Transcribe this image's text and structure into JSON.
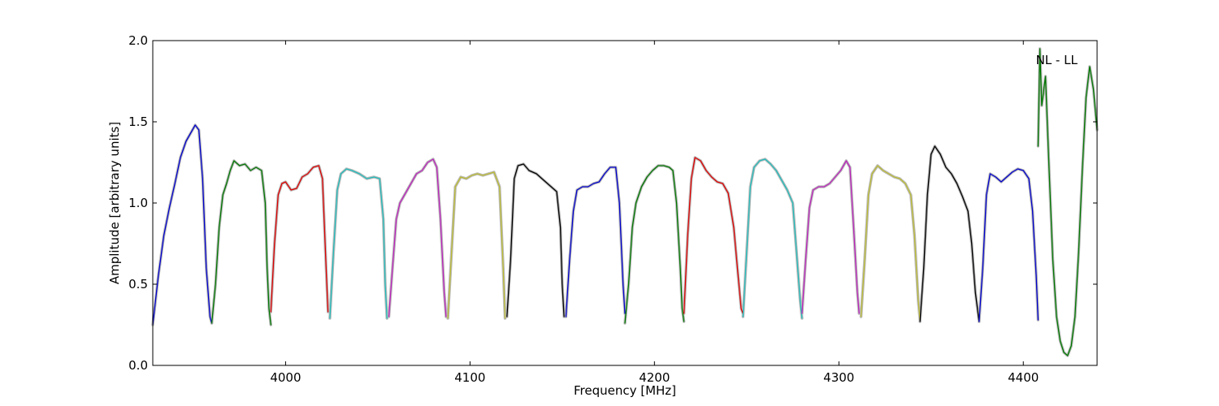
{
  "chart_data": {
    "type": "line",
    "title": "",
    "xlabel": "Frequency [MHz]",
    "ylabel": "Amplitude [arbitrary units]",
    "xlim": [
      3928,
      4440
    ],
    "ylim": [
      0.0,
      2.0
    ],
    "xticks": [
      {
        "value": 4000,
        "label": "4000"
      },
      {
        "value": 4100,
        "label": "4100"
      },
      {
        "value": 4200,
        "label": "4200"
      },
      {
        "value": 4300,
        "label": "4300"
      },
      {
        "value": 4400,
        "label": "4400"
      }
    ],
    "yticks": [
      {
        "value": 0.0,
        "label": "0.0"
      },
      {
        "value": 0.5,
        "label": "0.5"
      },
      {
        "value": 1.0,
        "label": "1.0"
      },
      {
        "value": 1.5,
        "label": "1.5"
      },
      {
        "value": 2.0,
        "label": "2.0"
      }
    ],
    "grid": false,
    "annotation": {
      "text": "NL - LL",
      "x": 4411,
      "y": 1.88
    },
    "background_series_color": "#bbbbbb",
    "series": [
      {
        "color": "#0000cc",
        "x": [
          3928,
          3931,
          3934,
          3937,
          3940,
          3943,
          3946,
          3949,
          3951,
          3953,
          3955,
          3957,
          3959,
          3960
        ],
        "y": [
          0.25,
          0.55,
          0.8,
          0.97,
          1.12,
          1.28,
          1.38,
          1.44,
          1.48,
          1.45,
          1.15,
          0.6,
          0.3,
          0.26
        ]
      },
      {
        "color": "#007700",
        "x": [
          3960,
          3962,
          3964,
          3966,
          3968,
          3970,
          3972,
          3975,
          3978,
          3981,
          3984,
          3987,
          3989,
          3990,
          3991,
          3992
        ],
        "y": [
          0.26,
          0.5,
          0.85,
          1.05,
          1.12,
          1.2,
          1.26,
          1.23,
          1.24,
          1.2,
          1.22,
          1.2,
          1.0,
          0.6,
          0.35,
          0.25
        ]
      },
      {
        "color": "#dd0000",
        "x": [
          3992,
          3994,
          3996,
          3998,
          4000,
          4003,
          4006,
          4009,
          4012,
          4015,
          4018,
          4020,
          4022,
          4023
        ],
        "y": [
          0.33,
          0.75,
          1.05,
          1.12,
          1.13,
          1.08,
          1.09,
          1.16,
          1.18,
          1.22,
          1.23,
          1.15,
          0.6,
          0.33
        ]
      },
      {
        "color": "#22bbbb",
        "x": [
          4024,
          4026,
          4028,
          4030,
          4033,
          4036,
          4040,
          4044,
          4048,
          4051,
          4053,
          4054,
          4055
        ],
        "y": [
          0.29,
          0.7,
          1.08,
          1.18,
          1.21,
          1.2,
          1.18,
          1.15,
          1.16,
          1.15,
          0.9,
          0.5,
          0.29
        ]
      },
      {
        "color": "#bb22bb",
        "x": [
          4056,
          4058,
          4060,
          4062,
          4065,
          4068,
          4071,
          4074,
          4077,
          4080,
          4082,
          4084,
          4086,
          4087
        ],
        "y": [
          0.3,
          0.6,
          0.9,
          1.0,
          1.06,
          1.12,
          1.18,
          1.2,
          1.25,
          1.27,
          1.22,
          0.9,
          0.45,
          0.3
        ]
      },
      {
        "color": "#bbbb33",
        "x": [
          4088,
          4090,
          4092,
          4095,
          4098,
          4101,
          4104,
          4107,
          4110,
          4113,
          4116,
          4118,
          4119
        ],
        "y": [
          0.29,
          0.7,
          1.1,
          1.16,
          1.15,
          1.17,
          1.18,
          1.17,
          1.18,
          1.19,
          1.1,
          0.6,
          0.29
        ]
      },
      {
        "color": "#000000",
        "x": [
          4120,
          4122,
          4124,
          4126,
          4129,
          4132,
          4136,
          4140,
          4144,
          4147,
          4149,
          4150,
          4151
        ],
        "y": [
          0.3,
          0.65,
          1.15,
          1.23,
          1.24,
          1.2,
          1.18,
          1.14,
          1.1,
          1.07,
          0.85,
          0.5,
          0.3
        ]
      },
      {
        "color": "#0000cc",
        "x": [
          4152,
          4154,
          4156,
          4158,
          4161,
          4164,
          4167,
          4170,
          4173,
          4176,
          4179,
          4181,
          4183,
          4184
        ],
        "y": [
          0.3,
          0.65,
          0.95,
          1.08,
          1.1,
          1.1,
          1.12,
          1.13,
          1.18,
          1.22,
          1.22,
          1.0,
          0.5,
          0.32
        ]
      },
      {
        "color": "#007700",
        "x": [
          4184,
          4186,
          4188,
          4190,
          4193,
          4196,
          4199,
          4202,
          4205,
          4208,
          4210,
          4212,
          4214,
          4215,
          4216
        ],
        "y": [
          0.26,
          0.5,
          0.85,
          1.0,
          1.1,
          1.16,
          1.2,
          1.23,
          1.23,
          1.22,
          1.2,
          1.0,
          0.6,
          0.35,
          0.27
        ]
      },
      {
        "color": "#dd0000",
        "x": [
          4216,
          4218,
          4220,
          4222,
          4225,
          4228,
          4231,
          4234,
          4237,
          4240,
          4243,
          4245,
          4247,
          4248
        ],
        "y": [
          0.32,
          0.8,
          1.15,
          1.28,
          1.26,
          1.2,
          1.16,
          1.13,
          1.12,
          1.06,
          0.85,
          0.6,
          0.35,
          0.32
        ]
      },
      {
        "color": "#22bbbb",
        "x": [
          4248,
          4250,
          4252,
          4254,
          4257,
          4260,
          4263,
          4266,
          4269,
          4272,
          4275,
          4277,
          4279,
          4280
        ],
        "y": [
          0.3,
          0.7,
          1.1,
          1.22,
          1.26,
          1.27,
          1.24,
          1.2,
          1.14,
          1.08,
          1.0,
          0.7,
          0.4,
          0.29
        ]
      },
      {
        "color": "#bb22bb",
        "x": [
          4280,
          4282,
          4284,
          4286,
          4289,
          4292,
          4295,
          4298,
          4301,
          4304,
          4306,
          4308,
          4310,
          4311
        ],
        "y": [
          0.32,
          0.65,
          0.97,
          1.08,
          1.1,
          1.1,
          1.12,
          1.16,
          1.2,
          1.26,
          1.22,
          0.85,
          0.45,
          0.32
        ]
      },
      {
        "color": "#bbbb33",
        "x": [
          4312,
          4314,
          4316,
          4318,
          4321,
          4324,
          4327,
          4330,
          4333,
          4336,
          4339,
          4341,
          4343,
          4344
        ],
        "y": [
          0.3,
          0.65,
          1.05,
          1.18,
          1.23,
          1.2,
          1.18,
          1.16,
          1.15,
          1.12,
          1.05,
          0.8,
          0.4,
          0.28
        ]
      },
      {
        "color": "#000000",
        "x": [
          4344,
          4346,
          4348,
          4350,
          4352,
          4355,
          4358,
          4361,
          4364,
          4367,
          4370,
          4372,
          4374,
          4376
        ],
        "y": [
          0.27,
          0.6,
          1.05,
          1.3,
          1.35,
          1.3,
          1.22,
          1.18,
          1.12,
          1.04,
          0.95,
          0.75,
          0.45,
          0.27
        ]
      },
      {
        "color": "#0000cc",
        "x": [
          4376,
          4378,
          4380,
          4382,
          4385,
          4388,
          4391,
          4394,
          4397,
          4400,
          4403,
          4405,
          4407,
          4408
        ],
        "y": [
          0.27,
          0.6,
          1.05,
          1.18,
          1.16,
          1.13,
          1.16,
          1.19,
          1.21,
          1.2,
          1.15,
          0.95,
          0.55,
          0.28
        ]
      },
      {
        "color": "#007700",
        "x": [
          4408,
          4409,
          4410,
          4412,
          4414,
          4416,
          4418,
          4420,
          4422,
          4424,
          4426,
          4428,
          4430,
          4432,
          4434,
          4436,
          4438,
          4440
        ],
        "y": [
          1.35,
          1.95,
          1.6,
          1.78,
          1.2,
          0.65,
          0.3,
          0.15,
          0.08,
          0.06,
          0.12,
          0.3,
          0.7,
          1.2,
          1.65,
          1.84,
          1.7,
          1.45
        ]
      }
    ]
  }
}
